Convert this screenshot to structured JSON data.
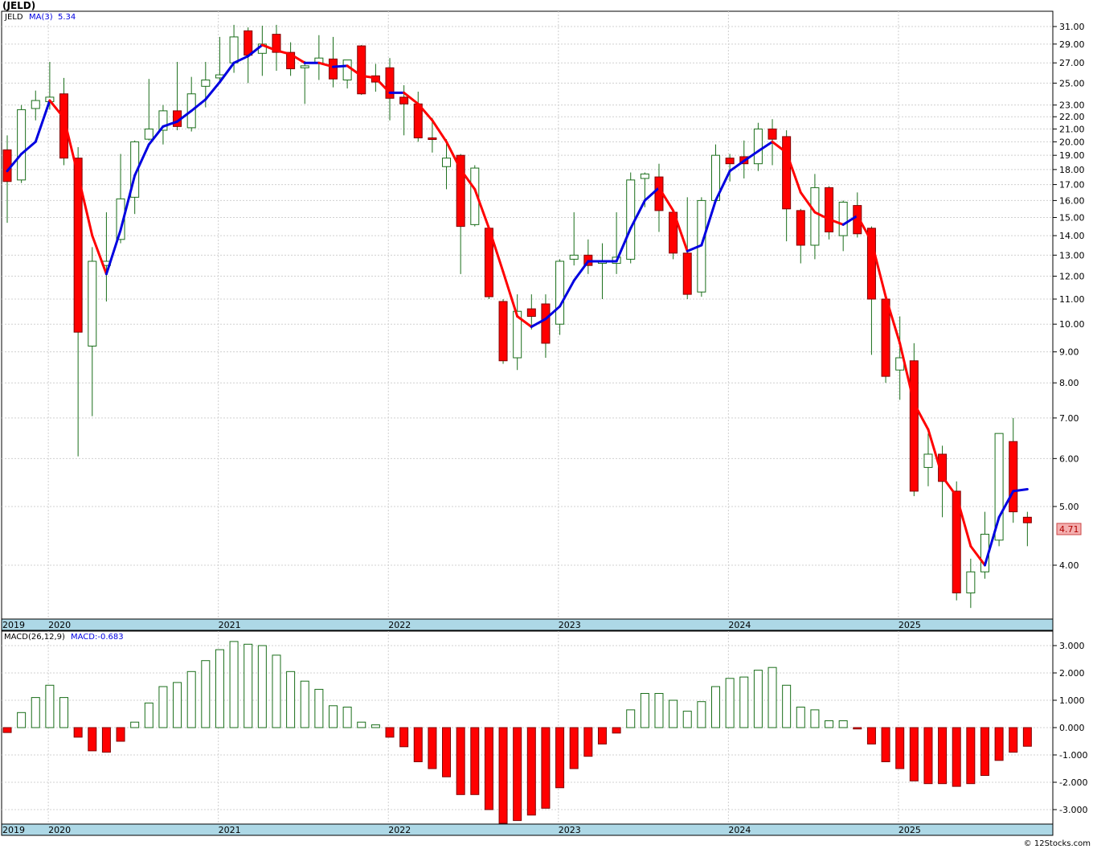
{
  "title": "(JELD)",
  "ticker": "JELD",
  "ma_label": "MA(3)",
  "ma_value": "5.34",
  "last_price": "4.71",
  "macd_params": "MACD(26,12,9)",
  "macd_value": "MACD:-0.683",
  "watermark": "© 12Stocks.com",
  "colors": {
    "up": "#1a6e1a",
    "down": "#ff0000",
    "ma_up": "#0000e0",
    "ma_down": "#ff0000",
    "axis_band": "#add8e6",
    "price_badge": "#f4b0b0"
  },
  "chart_data": [
    {
      "type": "candlestick",
      "period": "monthly",
      "scale": "log",
      "ylim": [
        3.5,
        32
      ],
      "yticks": [
        "31.00",
        "29.00",
        "27.00",
        "25.00",
        "23.00",
        "22.00",
        "21.00",
        "20.00",
        "19.00",
        "18.00",
        "17.00",
        "16.00",
        "15.00",
        "14.00",
        "13.00",
        "12.00",
        "11.00",
        "10.00",
        "9.00",
        "8.00",
        "7.00",
        "6.00",
        "5.00",
        "4.00"
      ],
      "xlabels": [
        "2019",
        "2020",
        "2021",
        "2022",
        "2023",
        "2024",
        "2025"
      ],
      "candles": [
        {
          "t": "2019-11",
          "o": 19.4,
          "h": 20.5,
          "l": 14.7,
          "c": 17.2
        },
        {
          "t": "2019-12",
          "o": 17.3,
          "h": 23.0,
          "l": 17.1,
          "c": 22.6
        },
        {
          "t": "2020-01",
          "o": 22.7,
          "h": 24.3,
          "l": 21.7,
          "c": 23.4
        },
        {
          "t": "2020-02",
          "o": 23.3,
          "h": 27.1,
          "l": 22.6,
          "c": 23.7
        },
        {
          "t": "2020-03",
          "o": 24.0,
          "h": 25.5,
          "l": 18.3,
          "c": 18.8
        },
        {
          "t": "2020-04",
          "o": 18.8,
          "h": 19.6,
          "l": 6.05,
          "c": 9.7
        },
        {
          "t": "2020-05",
          "o": 9.2,
          "h": 13.4,
          "l": 7.05,
          "c": 12.7
        },
        {
          "t": "2020-06",
          "o": 12.5,
          "h": 15.3,
          "l": 10.9,
          "c": 12.7
        },
        {
          "t": "2020-07",
          "o": 13.8,
          "h": 19.1,
          "l": 13.6,
          "c": 16.1
        },
        {
          "t": "2020-08",
          "o": 16.2,
          "h": 20.1,
          "l": 15.2,
          "c": 20.0
        },
        {
          "t": "2020-09",
          "o": 20.2,
          "h": 25.4,
          "l": 20.1,
          "c": 21.0
        },
        {
          "t": "2020-10",
          "o": 20.9,
          "h": 23.0,
          "l": 19.8,
          "c": 22.5
        },
        {
          "t": "2020-11",
          "o": 22.5,
          "h": 27.1,
          "l": 20.9,
          "c": 21.2
        },
        {
          "t": "2020-12",
          "o": 21.1,
          "h": 25.6,
          "l": 20.8,
          "c": 24.0
        },
        {
          "t": "2021-01",
          "o": 24.7,
          "h": 27.1,
          "l": 22.8,
          "c": 25.3
        },
        {
          "t": "2021-02",
          "o": 25.5,
          "h": 29.8,
          "l": 25.2,
          "c": 25.8
        },
        {
          "t": "2021-03",
          "o": 27.0,
          "h": 31.2,
          "l": 26.0,
          "c": 29.8
        },
        {
          "t": "2021-04",
          "o": 30.5,
          "h": 30.9,
          "l": 25.0,
          "c": 27.8
        },
        {
          "t": "2021-05",
          "o": 28.0,
          "h": 31.1,
          "l": 25.7,
          "c": 29.0
        },
        {
          "t": "2021-06",
          "o": 30.1,
          "h": 31.2,
          "l": 26.2,
          "c": 28.1
        },
        {
          "t": "2021-07",
          "o": 28.1,
          "h": 29.2,
          "l": 25.7,
          "c": 26.4
        },
        {
          "t": "2021-08",
          "o": 26.5,
          "h": 27.2,
          "l": 23.1,
          "c": 26.7
        },
        {
          "t": "2021-09",
          "o": 27.0,
          "h": 30.0,
          "l": 25.3,
          "c": 27.5
        },
        {
          "t": "2021-10",
          "o": 27.4,
          "h": 29.8,
          "l": 24.6,
          "c": 25.4
        },
        {
          "t": "2021-11",
          "o": 25.3,
          "h": 27.3,
          "l": 24.5,
          "c": 27.3
        },
        {
          "t": "2021-12",
          "o": 28.8,
          "h": 28.9,
          "l": 23.9,
          "c": 24.0
        },
        {
          "t": "2022-01",
          "o": 25.7,
          "h": 26.9,
          "l": 24.2,
          "c": 25.1
        },
        {
          "t": "2022-02",
          "o": 26.5,
          "h": 27.5,
          "l": 21.7,
          "c": 23.6
        },
        {
          "t": "2022-03",
          "o": 23.7,
          "h": 24.8,
          "l": 20.5,
          "c": 23.1
        },
        {
          "t": "2022-04",
          "o": 23.1,
          "h": 24.2,
          "l": 20.0,
          "c": 20.3
        },
        {
          "t": "2022-05",
          "o": 20.3,
          "h": 21.9,
          "l": 19.2,
          "c": 20.2
        },
        {
          "t": "2022-06",
          "o": 18.2,
          "h": 20.2,
          "l": 16.7,
          "c": 18.8
        },
        {
          "t": "2022-07",
          "o": 19.0,
          "h": 19.1,
          "l": 12.1,
          "c": 14.5
        },
        {
          "t": "2022-08",
          "o": 14.6,
          "h": 18.3,
          "l": 14.5,
          "c": 18.1
        },
        {
          "t": "2022-09",
          "o": 14.4,
          "h": 14.5,
          "l": 11.0,
          "c": 11.1
        },
        {
          "t": "2022-10",
          "o": 10.9,
          "h": 11.0,
          "l": 8.6,
          "c": 8.7
        },
        {
          "t": "2022-11",
          "o": 8.8,
          "h": 11.2,
          "l": 8.4,
          "c": 10.5
        },
        {
          "t": "2022-12",
          "o": 10.6,
          "h": 11.2,
          "l": 9.8,
          "c": 10.3
        },
        {
          "t": "2023-01",
          "o": 10.8,
          "h": 11.2,
          "l": 8.8,
          "c": 9.3
        },
        {
          "t": "2023-02",
          "o": 10.0,
          "h": 12.8,
          "l": 9.6,
          "c": 12.7
        },
        {
          "t": "2023-03",
          "o": 12.8,
          "h": 15.3,
          "l": 12.5,
          "c": 13.0
        },
        {
          "t": "2023-04",
          "o": 13.0,
          "h": 13.8,
          "l": 12.1,
          "c": 12.5
        },
        {
          "t": "2023-05",
          "o": 12.6,
          "h": 13.6,
          "l": 11.0,
          "c": 12.7
        },
        {
          "t": "2023-06",
          "o": 12.6,
          "h": 15.3,
          "l": 12.1,
          "c": 12.9
        },
        {
          "t": "2023-07",
          "o": 12.8,
          "h": 17.8,
          "l": 12.6,
          "c": 17.3
        },
        {
          "t": "2023-08",
          "o": 17.4,
          "h": 17.8,
          "l": 15.6,
          "c": 17.7
        },
        {
          "t": "2023-09",
          "o": 17.5,
          "h": 18.4,
          "l": 14.2,
          "c": 15.4
        },
        {
          "t": "2023-10",
          "o": 15.3,
          "h": 15.4,
          "l": 12.8,
          "c": 13.1
        },
        {
          "t": "2023-11",
          "o": 13.1,
          "h": 16.2,
          "l": 11.0,
          "c": 11.2
        },
        {
          "t": "2023-12",
          "o": 11.3,
          "h": 16.2,
          "l": 11.1,
          "c": 16.0
        },
        {
          "t": "2024-01",
          "o": 16.0,
          "h": 19.8,
          "l": 16.0,
          "c": 19.0
        },
        {
          "t": "2024-02",
          "o": 18.8,
          "h": 19.1,
          "l": 17.2,
          "c": 18.4
        },
        {
          "t": "2024-03",
          "o": 18.9,
          "h": 20.1,
          "l": 17.4,
          "c": 18.4
        },
        {
          "t": "2024-04",
          "o": 18.4,
          "h": 21.5,
          "l": 17.9,
          "c": 21.0
        },
        {
          "t": "2024-05",
          "o": 21.0,
          "h": 21.8,
          "l": 18.3,
          "c": 20.2
        },
        {
          "t": "2024-06",
          "o": 20.4,
          "h": 20.9,
          "l": 13.7,
          "c": 15.5
        },
        {
          "t": "2024-07",
          "o": 15.4,
          "h": 15.5,
          "l": 12.6,
          "c": 13.5
        },
        {
          "t": "2024-08",
          "o": 13.5,
          "h": 17.7,
          "l": 12.8,
          "c": 16.8
        },
        {
          "t": "2024-09",
          "o": 16.8,
          "h": 16.9,
          "l": 13.8,
          "c": 14.2
        },
        {
          "t": "2024-10",
          "o": 14.0,
          "h": 16.0,
          "l": 13.2,
          "c": 15.9
        },
        {
          "t": "2024-11",
          "o": 15.7,
          "h": 16.5,
          "l": 13.9,
          "c": 14.1
        },
        {
          "t": "2024-12",
          "o": 14.4,
          "h": 14.5,
          "l": 8.9,
          "c": 11.0
        },
        {
          "t": "2025-01",
          "o": 11.0,
          "h": 11.2,
          "l": 8.0,
          "c": 8.2
        },
        {
          "t": "2025-02",
          "o": 8.4,
          "h": 10.3,
          "l": 7.5,
          "c": 8.8
        },
        {
          "t": "2025-03",
          "o": 8.7,
          "h": 9.3,
          "l": 5.2,
          "c": 5.3
        },
        {
          "t": "2025-04",
          "o": 5.8,
          "h": 6.6,
          "l": 5.4,
          "c": 6.1
        },
        {
          "t": "2025-05",
          "o": 6.1,
          "h": 6.3,
          "l": 4.8,
          "c": 5.5
        },
        {
          "t": "2025-06",
          "o": 5.3,
          "h": 5.5,
          "l": 3.5,
          "c": 3.6
        },
        {
          "t": "2025-07",
          "o": 3.6,
          "h": 4.1,
          "l": 3.4,
          "c": 3.9
        },
        {
          "t": "2025-08",
          "o": 3.9,
          "h": 4.9,
          "l": 3.8,
          "c": 4.5
        },
        {
          "t": "2025-09",
          "o": 4.4,
          "h": 6.6,
          "l": 4.3,
          "c": 6.6
        },
        {
          "t": "2025-10",
          "o": 6.4,
          "h": 7.0,
          "l": 4.7,
          "c": 4.9
        },
        {
          "t": "2025-11",
          "o": 4.8,
          "h": 4.9,
          "l": 4.3,
          "c": 4.7
        }
      ],
      "ma3": [
        17.9,
        19.1,
        20.0,
        23.4,
        21.9,
        17.6,
        14.0,
        12.1,
        14.3,
        17.6,
        19.8,
        21.2,
        21.6,
        22.5,
        23.5,
        25.1,
        27.0,
        27.7,
        28.9,
        28.3,
        27.9,
        27.0,
        27.0,
        26.6,
        26.7,
        25.7,
        25.5,
        24.1,
        24.1,
        23.1,
        21.7,
        20.0,
        18.0,
        16.7,
        14.4,
        12.2,
        10.3,
        9.9,
        10.2,
        10.7,
        11.8,
        12.7,
        12.7,
        12.7,
        14.4,
        16.0,
        16.8,
        15.4,
        13.2,
        13.5,
        16.0,
        17.9,
        18.6,
        19.3,
        20.0,
        19.2,
        16.5,
        15.3,
        14.9,
        14.6,
        15.1,
        13.7,
        11.1,
        9.3,
        7.4,
        6.7,
        5.6,
        5.2,
        4.3,
        4.0,
        4.8,
        5.3,
        5.34
      ]
    },
    {
      "type": "bar",
      "title": "MACD(26,12,9)",
      "ylim": [
        -3.5,
        3.2
      ],
      "yticks": [
        "3.000",
        "2.000",
        "1.000",
        "0.000",
        "-1.000",
        "-2.000",
        "-3.000"
      ],
      "values": [
        -0.18,
        0.55,
        1.1,
        1.55,
        1.1,
        -0.35,
        -0.85,
        -0.9,
        -0.5,
        0.2,
        0.9,
        1.5,
        1.65,
        2.05,
        2.45,
        2.85,
        3.15,
        3.05,
        3.0,
        2.65,
        2.05,
        1.7,
        1.4,
        0.8,
        0.75,
        0.2,
        0.1,
        -0.35,
        -0.7,
        -1.25,
        -1.5,
        -1.8,
        -2.45,
        -2.45,
        -3.0,
        -3.5,
        -3.4,
        -3.2,
        -2.95,
        -2.2,
        -1.5,
        -1.05,
        -0.6,
        -0.2,
        0.65,
        1.25,
        1.25,
        1.0,
        0.6,
        0.95,
        1.5,
        1.8,
        1.85,
        2.1,
        2.2,
        1.55,
        0.75,
        0.65,
        0.25,
        0.25,
        -0.05,
        -0.6,
        -1.25,
        -1.5,
        -1.95,
        -2.05,
        -2.05,
        -2.15,
        -2.05,
        -1.75,
        -1.2,
        -0.9,
        -0.683
      ]
    }
  ]
}
